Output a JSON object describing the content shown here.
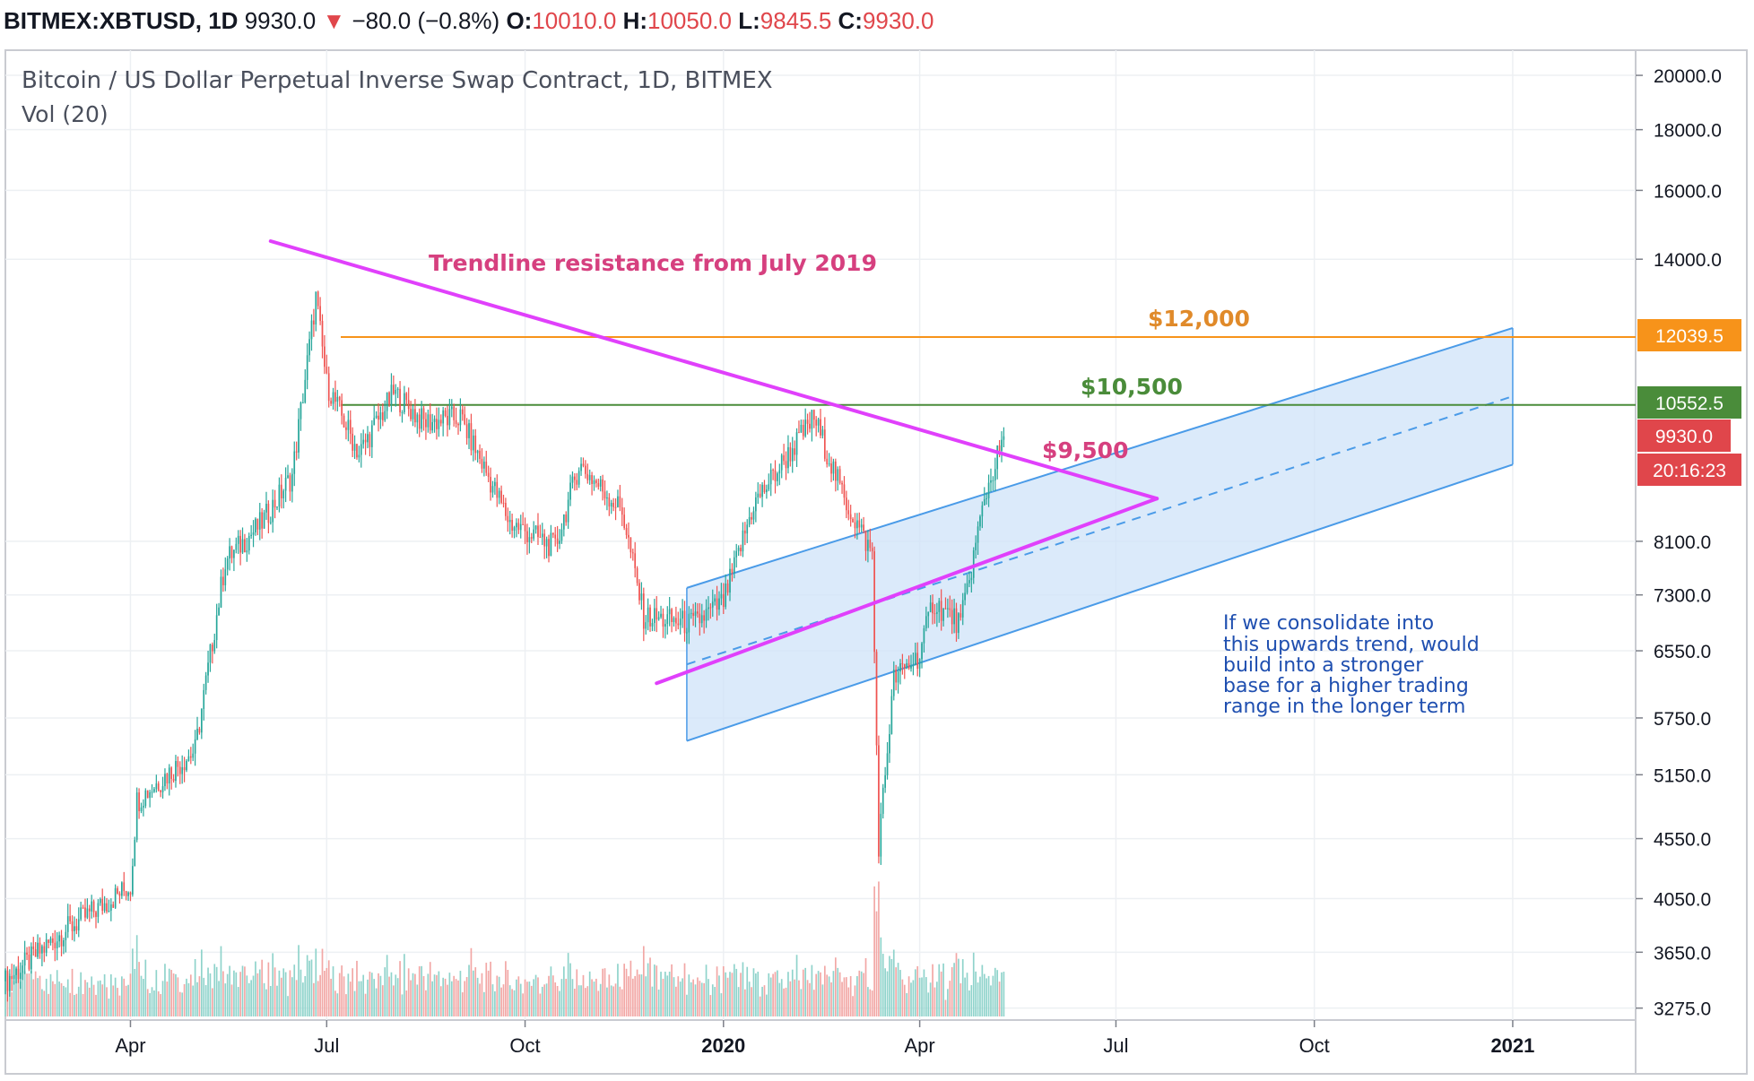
{
  "header": {
    "symbol": "BITMEX:XBTUSD, 1D",
    "last": "9930.0",
    "arrow": "▼",
    "change": "−80.0 (−0.8%)",
    "o_label": "O:",
    "o_value": "10010.0",
    "h_label": "H:",
    "h_value": "10050.0",
    "l_label": "L:",
    "l_value": "9845.5",
    "c_label": "C:",
    "c_value": "9930.0"
  },
  "legend": {
    "title": "Bitcoin / US Dollar Perpetual Inverse Swap Contract, 1D, BITMEX",
    "volume": "Vol (20)"
  },
  "annotations": {
    "trendline": "Trendline resistance from July 2019",
    "level_12000": "$12,000",
    "level_10500": "$10,500",
    "level_9500": "$9,500",
    "note": [
      "If we consolidate into",
      "this upwards trend, would",
      "build into a stronger",
      "base for a higher trading",
      "range in the longer term"
    ]
  },
  "price_tags": {
    "orange": "12039.5",
    "green": "10552.5",
    "last": "9930.0",
    "countdown": "20:16:23"
  },
  "colors": {
    "up": "#26a69a",
    "down": "#ef5350",
    "trendline": "#e040fb",
    "orange": "#f7931a",
    "green": "#4a8c3a",
    "channel": "#4a9be8",
    "channel_fill": "#cfe3f8",
    "note": "#1f4fb0",
    "label_magenta": "#d6407f"
  },
  "chart_data": {
    "type": "candlestick",
    "title": "Bitcoin / US Dollar Perpetual Inverse Swap Contract, 1D, BITMEX",
    "x_tick_labels": [
      "Apr",
      "Jul",
      "Oct",
      "2020",
      "Apr",
      "Jul",
      "Oct",
      "2021"
    ],
    "y_tick_labels": [
      "20000.0",
      "18000.0",
      "16000.0",
      "14000.0",
      "8100.0",
      "7300.0",
      "6550.0",
      "5750.0",
      "5150.0",
      "4550.0",
      "4050.0",
      "3650.0",
      "3275.0"
    ],
    "y_scale": "log",
    "x_range": [
      "2019-02-02",
      "2021-02-27"
    ],
    "y_range": [
      3200,
      21000
    ],
    "key_price_points": [
      {
        "date": "2019-02-02",
        "price": 3450
      },
      {
        "date": "2019-03-01",
        "price": 3800
      },
      {
        "date": "2019-04-01",
        "price": 4150
      },
      {
        "date": "2019-04-04",
        "price": 4900
      },
      {
        "date": "2019-05-01",
        "price": 5400
      },
      {
        "date": "2019-05-15",
        "price": 7800
      },
      {
        "date": "2019-06-01",
        "price": 8400
      },
      {
        "date": "2019-06-15",
        "price": 9200
      },
      {
        "date": "2019-06-26",
        "price": 13000
      },
      {
        "date": "2019-07-01",
        "price": 11000
      },
      {
        "date": "2019-07-16",
        "price": 9600
      },
      {
        "date": "2019-08-01",
        "price": 10800
      },
      {
        "date": "2019-08-15",
        "price": 10200
      },
      {
        "date": "2019-09-01",
        "price": 10300
      },
      {
        "date": "2019-09-24",
        "price": 8400
      },
      {
        "date": "2019-10-15",
        "price": 8000
      },
      {
        "date": "2019-10-26",
        "price": 9400
      },
      {
        "date": "2019-11-15",
        "price": 8600
      },
      {
        "date": "2019-11-25",
        "price": 7000
      },
      {
        "date": "2019-12-18",
        "price": 6900
      },
      {
        "date": "2020-01-01",
        "price": 7200
      },
      {
        "date": "2020-01-15",
        "price": 8700
      },
      {
        "date": "2020-02-12",
        "price": 10300
      },
      {
        "date": "2020-02-26",
        "price": 8800
      },
      {
        "date": "2020-03-10",
        "price": 7900
      },
      {
        "date": "2020-03-13",
        "price": 4500
      },
      {
        "date": "2020-03-20",
        "price": 6200
      },
      {
        "date": "2020-04-01",
        "price": 6500
      },
      {
        "date": "2020-04-07",
        "price": 7200
      },
      {
        "date": "2020-04-20",
        "price": 6900
      },
      {
        "date": "2020-05-01",
        "price": 8800
      },
      {
        "date": "2020-05-10",
        "price": 9930
      }
    ],
    "horizontal_lines": [
      {
        "label": "$12,000",
        "price": 12039.5
      },
      {
        "label": "$10,500",
        "price": 10552.5
      }
    ],
    "trendlines": [
      {
        "label": "Trendline resistance from July 2019",
        "from": {
          "date": "2019-06-05",
          "price": 14500
        },
        "to": {
          "date": "2020-07-20",
          "price": 8800
        }
      },
      {
        "from": {
          "date": "2019-12-01",
          "price": 6150
        },
        "to": {
          "date": "2020-07-20",
          "price": 8800
        }
      }
    ],
    "channel": {
      "upper": {
        "from": {
          "date": "2019-12-15",
          "price": 7400
        },
        "to": {
          "date": "2021-01-01",
          "price": 12250
        }
      },
      "lower": {
        "from": {
          "date": "2019-12-15",
          "price": 5500
        },
        "to": {
          "date": "2021-01-01",
          "price": 9400
        }
      },
      "mid_dashed": true
    },
    "last_price": 9930.0,
    "volume_series": "Vol (20)"
  }
}
